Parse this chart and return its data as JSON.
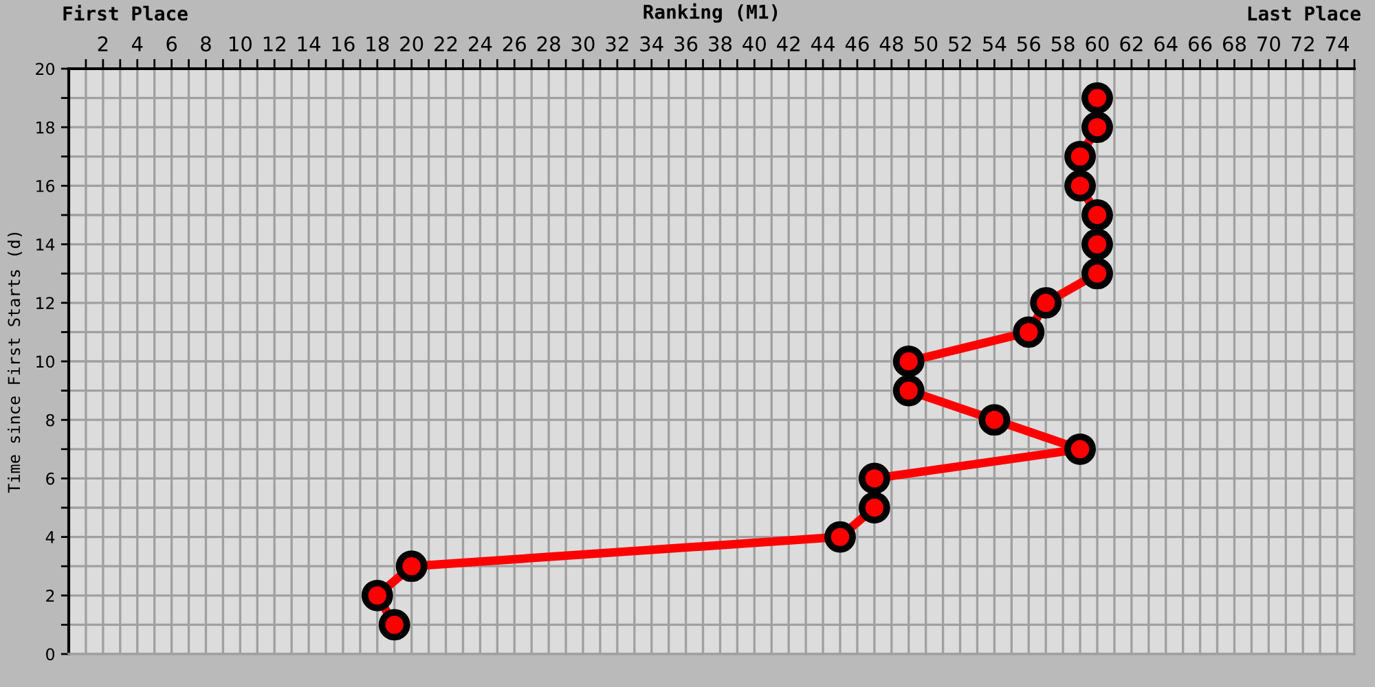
{
  "chart_data": {
    "type": "line",
    "xlabel": "Ranking (M1)",
    "ylabel": "Time since First Starts (d)",
    "annotations": [
      "First Place",
      "Last Place"
    ],
    "series": [
      {
        "color": "#ff0000",
        "x": [
          19,
          18,
          20,
          45,
          47,
          47,
          59,
          54,
          49,
          49,
          56,
          57,
          60,
          60,
          60,
          59,
          59,
          60,
          60
        ],
        "values": [
          1,
          2,
          3,
          4,
          5,
          6,
          7,
          8,
          9,
          10,
          11,
          12,
          13,
          14,
          15,
          16,
          17,
          18,
          19
        ]
      }
    ],
    "marker": "circle",
    "line_style": "solid",
    "xlim": [
      0,
      75
    ],
    "ylim": [
      0,
      20
    ],
    "xticks": [
      {
        "value": 1,
        "label": null
      },
      2,
      {
        "value": 3,
        "label": null
      },
      4,
      {
        "value": 5,
        "label": null
      },
      6,
      {
        "value": 7,
        "label": null
      },
      8,
      {
        "value": 9,
        "label": null
      },
      10,
      {
        "value": 11,
        "label": null
      },
      12,
      {
        "value": 13,
        "label": null
      },
      14,
      {
        "value": 15,
        "label": null
      },
      16,
      {
        "value": 17,
        "label": null
      },
      18,
      {
        "value": 19,
        "label": null
      },
      20,
      {
        "value": 21,
        "label": null
      },
      22,
      {
        "value": 23,
        "label": null
      },
      24,
      {
        "value": 25,
        "label": null
      },
      26,
      {
        "value": 27,
        "label": null
      },
      28,
      {
        "value": 29,
        "label": null
      },
      30,
      {
        "value": 31,
        "label": null
      },
      32,
      {
        "value": 33,
        "label": null
      },
      34,
      {
        "value": 35,
        "label": null
      },
      36,
      {
        "value": 37,
        "label": null
      },
      38,
      {
        "value": 39,
        "label": null
      },
      40,
      {
        "value": 41,
        "label": null
      },
      42,
      {
        "value": 43,
        "label": null
      },
      44,
      {
        "value": 45,
        "label": null
      },
      46,
      {
        "value": 47,
        "label": null
      },
      48,
      {
        "value": 49,
        "label": null
      },
      50,
      {
        "value": 51,
        "label": null
      },
      52,
      {
        "value": 53,
        "label": null
      },
      54,
      {
        "value": 55,
        "label": null
      },
      56,
      {
        "value": 57,
        "label": null
      },
      58,
      {
        "value": 59,
        "label": null
      },
      60,
      {
        "value": 61,
        "label": null
      },
      62,
      {
        "value": 63,
        "label": null
      },
      64,
      {
        "value": 65,
        "label": null
      },
      66,
      {
        "value": 67,
        "label": null
      },
      68,
      {
        "value": 69,
        "label": null
      },
      70,
      {
        "value": 71,
        "label": null
      },
      72,
      {
        "value": 73,
        "label": null
      },
      74,
      {
        "value": 75,
        "label": null
      }
    ],
    "yticks": [
      0,
      {
        "value": 1,
        "label": null
      },
      2,
      {
        "value": 3,
        "label": null
      },
      4,
      {
        "value": 5,
        "label": null
      },
      6,
      {
        "value": 7,
        "label": null
      },
      8,
      {
        "value": 9,
        "label": null
      },
      10,
      {
        "value": 11,
        "label": null
      },
      12,
      {
        "value": 13,
        "label": null
      },
      14,
      {
        "value": 15,
        "label": null
      },
      16,
      {
        "value": 17,
        "label": null
      },
      18,
      {
        "value": 19,
        "label": null
      },
      20
    ],
    "grid": true
  }
}
